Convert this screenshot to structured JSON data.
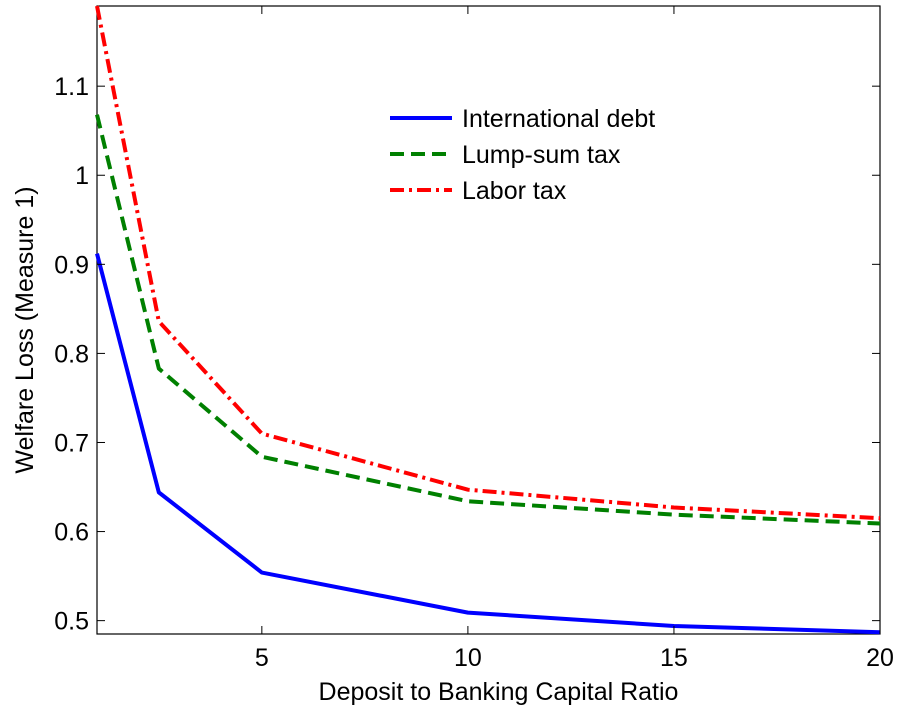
{
  "chart_data": {
    "type": "line",
    "xlabel": "Deposit to Banking Capital Ratio",
    "ylabel": "Welfare Loss (Measure 1)",
    "xlim": [
      1,
      20
    ],
    "ylim": [
      0.485,
      1.19
    ],
    "xticks": [
      5,
      10,
      15,
      20
    ],
    "yticks": [
      0.5,
      0.6,
      0.7,
      0.8,
      0.9,
      1.0,
      1.1
    ],
    "ytick_labels": [
      "0.5",
      "0.6",
      "0.7",
      "0.8",
      "0.9",
      "1",
      "1.1"
    ],
    "grid": false,
    "legend_position": "top-right",
    "x": [
      1,
      2.5,
      5,
      10,
      15,
      20
    ],
    "series": [
      {
        "name": "International debt",
        "color": "#0000ff",
        "style": "solid",
        "values": [
          0.912,
          0.644,
          0.554,
          0.509,
          0.494,
          0.487
        ]
      },
      {
        "name": "Lump-sum tax",
        "color": "#008000",
        "style": "dashed",
        "values": [
          1.068,
          0.783,
          0.684,
          0.634,
          0.619,
          0.609
        ]
      },
      {
        "name": "Labor tax",
        "color": "#ff0000",
        "style": "dashdot",
        "values": [
          1.19,
          0.836,
          0.71,
          0.647,
          0.627,
          0.615
        ]
      }
    ]
  }
}
